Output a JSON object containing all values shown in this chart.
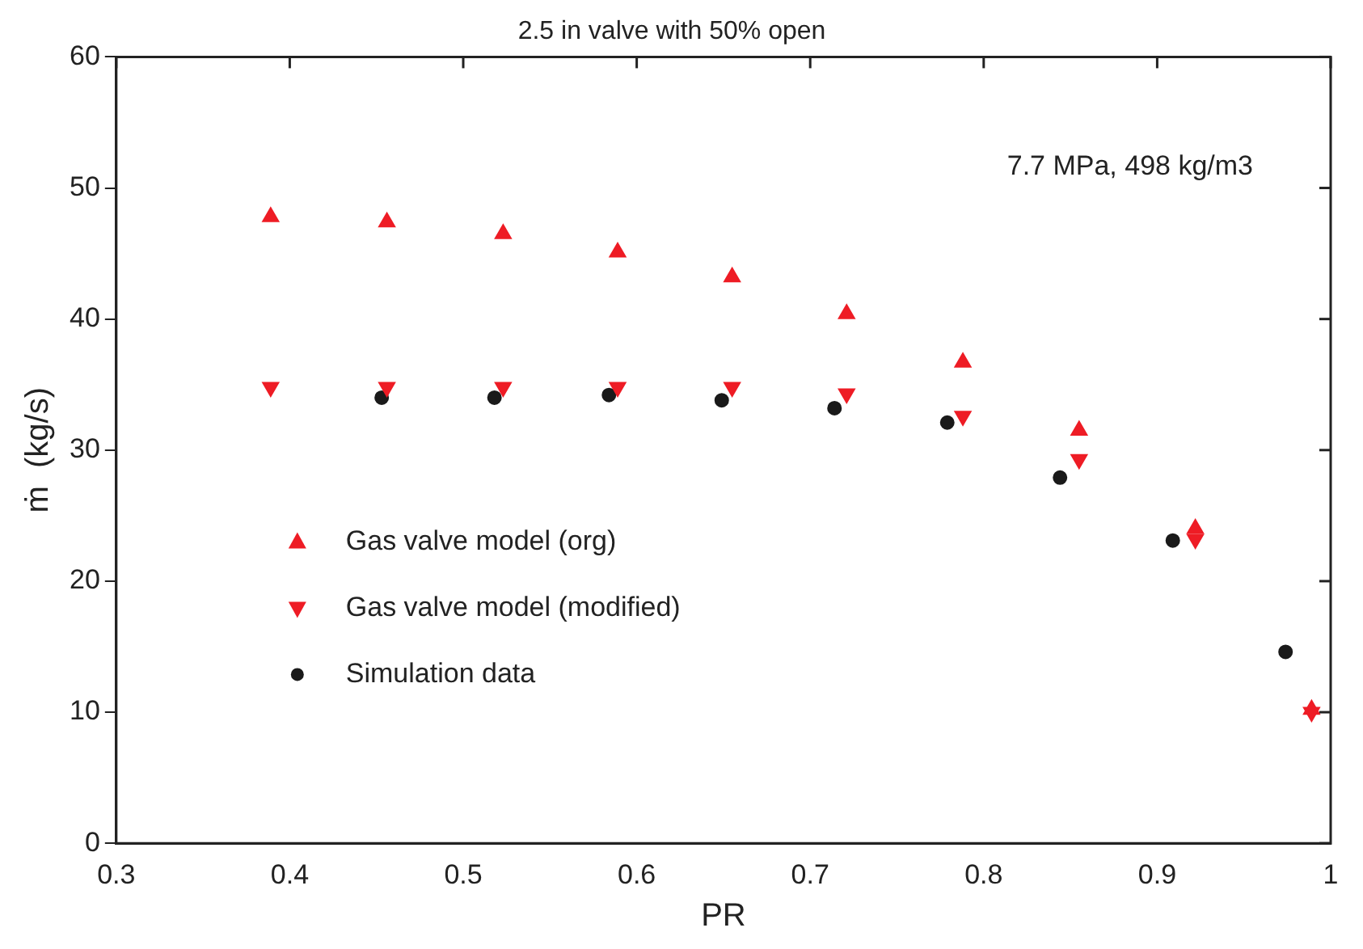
{
  "chart_data": {
    "type": "scatter",
    "title": "2.5 in valve with 50% open",
    "xlabel": "PR",
    "ylabel": "ṁ  (kg/s)",
    "xlim": [
      0.3,
      1
    ],
    "xticks": [
      0.3,
      0.4,
      0.5,
      0.6,
      0.7,
      0.8,
      0.9,
      1
    ],
    "ylim": [
      0,
      60
    ],
    "yticks": [
      0,
      10,
      20,
      30,
      40,
      50,
      60
    ],
    "grid": false,
    "legend": "left",
    "annotations": [
      "7.7 MPa, 498 kg/m3"
    ],
    "series": [
      {
        "name": "Gas valve model (org)",
        "color": "#ee1c25",
        "marker": "triangle",
        "x": [
          0.389,
          0.456,
          0.523,
          0.589,
          0.655,
          0.721,
          0.788,
          0.855,
          0.922,
          0.989
        ],
        "values": [
          47.8,
          47.4,
          46.5,
          45.1,
          43.2,
          40.4,
          36.7,
          31.5,
          24.0,
          10.2
        ]
      },
      {
        "name": "Gas valve model (modified)",
        "color": "#ee1c25",
        "marker": "triangle-down",
        "x": [
          0.389,
          0.456,
          0.523,
          0.589,
          0.655,
          0.721,
          0.788,
          0.855,
          0.922,
          0.989
        ],
        "values": [
          34.8,
          34.8,
          34.8,
          34.8,
          34.8,
          34.3,
          32.6,
          29.3,
          23.2,
          10.0
        ]
      },
      {
        "name": "Simulation data",
        "color": "#1a1a1a",
        "marker": "circle",
        "x": [
          0.453,
          0.518,
          0.584,
          0.649,
          0.714,
          0.779,
          0.844,
          0.909,
          0.974
        ],
        "values": [
          34.0,
          34.0,
          34.2,
          33.8,
          33.2,
          32.1,
          27.9,
          23.1,
          14.6
        ]
      }
    ]
  }
}
